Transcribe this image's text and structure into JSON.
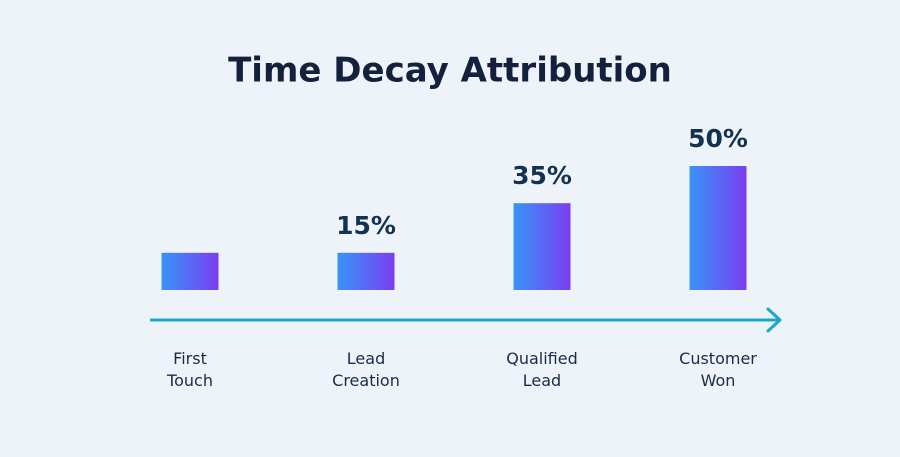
{
  "chart_data": {
    "type": "bar",
    "title": "Time Decay Attribution",
    "categories": [
      "First Touch",
      "Lead Creation",
      "Qualified Lead",
      "Customer Won"
    ],
    "values": [
      15,
      15,
      35,
      50
    ],
    "value_labels": [
      null,
      "15%",
      "35%",
      "50%"
    ],
    "color": [
      "#3a93f8",
      "#7a3ef0"
    ]
  }
}
